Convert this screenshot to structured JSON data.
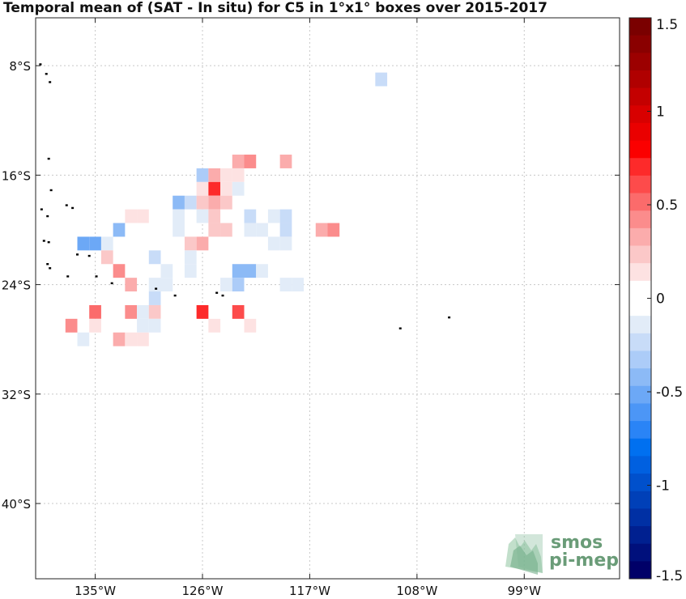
{
  "title": "Temporal mean of (SAT - In situ) for C5 in 1°x1° boxes over 2015-2017",
  "map": {
    "lon_range": [
      -140,
      -91
    ],
    "lat_range": [
      -45.5,
      -4.5
    ],
    "lon_ticks": [
      {
        "value": -135,
        "label": "135°W"
      },
      {
        "value": -126,
        "label": "126°W"
      },
      {
        "value": -117,
        "label": "117°W"
      },
      {
        "value": -108,
        "label": "108°W"
      },
      {
        "value": -99,
        "label": "99°W"
      }
    ],
    "lat_ticks": [
      {
        "value": -8,
        "label": "8°S"
      },
      {
        "value": -16,
        "label": "16°S"
      },
      {
        "value": -24,
        "label": "24°S"
      },
      {
        "value": -32,
        "label": "32°S"
      },
      {
        "value": -40,
        "label": "40°S"
      }
    ],
    "grid": true,
    "islands": [
      [
        -139.6,
        -7.9
      ],
      [
        -139.1,
        -8.6
      ],
      [
        -138.8,
        -9.2
      ],
      [
        -138.9,
        -14.8
      ],
      [
        -138.7,
        -17.1
      ],
      [
        -137.4,
        -18.2
      ],
      [
        -136.9,
        -18.4
      ],
      [
        -139.5,
        -18.5
      ],
      [
        -139.0,
        -19.0
      ],
      [
        -139.3,
        -20.8
      ],
      [
        -138.9,
        -20.9
      ],
      [
        -136.5,
        -21.8
      ],
      [
        -135.5,
        -21.9
      ],
      [
        -139.0,
        -22.5
      ],
      [
        -138.8,
        -22.8
      ],
      [
        -137.3,
        -23.4
      ],
      [
        -134.9,
        -23.4
      ],
      [
        -133.6,
        -23.9
      ],
      [
        -129.9,
        -24.3
      ],
      [
        -128.3,
        -24.8
      ],
      [
        -124.8,
        -24.6
      ],
      [
        -124.3,
        -24.8
      ],
      [
        -109.4,
        -27.2
      ],
      [
        -105.3,
        -26.4
      ]
    ]
  },
  "colorbar": {
    "min": -1.5,
    "max": 1.5,
    "tick_values": [
      1.5,
      1,
      0.5,
      0,
      -0.5,
      -1,
      -1.5
    ],
    "tick_labels": [
      "1.5",
      "1",
      "0.5",
      "0",
      "-0.5",
      "-1",
      "-1.5"
    ],
    "colors": [
      "#7a0000",
      "#8a0000",
      "#9c0000",
      "#b00000",
      "#c40000",
      "#d80000",
      "#ea0000",
      "#fb0000",
      "#fd2a2a",
      "#fd4b4b",
      "#fb6b6b",
      "#fb8c8c",
      "#fbacac",
      "#fbc8c8",
      "#fde2e2",
      "#ffffff",
      "#ffffff",
      "#e2ecf8",
      "#c8dcf8",
      "#acccf8",
      "#8cbaf6",
      "#6ca8f6",
      "#4c96f6",
      "#2a84f6",
      "#0070f0",
      "#0060e0",
      "#0050cc",
      "#0040b8",
      "#0030a4",
      "#002090",
      "#00107c",
      "#000068"
    ]
  },
  "chart_data": {
    "type": "heatmap",
    "title": "Temporal mean of (SAT - In situ) for C5 in 1°x1° boxes over 2015-2017",
    "xlabel": "",
    "ylabel": "",
    "xlim": [
      -140,
      -91
    ],
    "ylim": [
      -45.5,
      -4.5
    ],
    "color_range": [
      -1.5,
      1.5
    ],
    "cells": [
      {
        "lon": -111,
        "lat": -9,
        "v": -0.2
      },
      {
        "lon": -123,
        "lat": -15,
        "v": 0.3
      },
      {
        "lon": -122,
        "lat": -15,
        "v": 0.45
      },
      {
        "lon": -119,
        "lat": -15,
        "v": 0.3
      },
      {
        "lon": -126,
        "lat": -16,
        "v": -0.35
      },
      {
        "lon": -125,
        "lat": -16,
        "v": 0.35
      },
      {
        "lon": -124,
        "lat": -16,
        "v": 0.15
      },
      {
        "lon": -123,
        "lat": -16,
        "v": 0.15
      },
      {
        "lon": -126,
        "lat": -17,
        "v": 0.15
      },
      {
        "lon": -125,
        "lat": -17,
        "v": 0.7
      },
      {
        "lon": -124,
        "lat": -17,
        "v": 0.15
      },
      {
        "lon": -123,
        "lat": -17,
        "v": -0.1
      },
      {
        "lon": -128,
        "lat": -18,
        "v": -0.45
      },
      {
        "lon": -127,
        "lat": -18,
        "v": -0.25
      },
      {
        "lon": -126,
        "lat": -18,
        "v": 0.2
      },
      {
        "lon": -125,
        "lat": -18,
        "v": 0.3
      },
      {
        "lon": -124,
        "lat": -18,
        "v": 0.2
      },
      {
        "lon": -132,
        "lat": -19,
        "v": 0.15
      },
      {
        "lon": -131,
        "lat": -19,
        "v": 0.15
      },
      {
        "lon": -128,
        "lat": -19,
        "v": -0.1
      },
      {
        "lon": -126,
        "lat": -19,
        "v": -0.1
      },
      {
        "lon": -125,
        "lat": -19,
        "v": 0.2
      },
      {
        "lon": -122,
        "lat": -19,
        "v": -0.2
      },
      {
        "lon": -120,
        "lat": -19,
        "v": -0.1
      },
      {
        "lon": -119,
        "lat": -19,
        "v": -0.2
      },
      {
        "lon": -133,
        "lat": -20,
        "v": -0.45
      },
      {
        "lon": -128,
        "lat": -20,
        "v": -0.1
      },
      {
        "lon": -125,
        "lat": -20,
        "v": 0.2
      },
      {
        "lon": -124,
        "lat": -20,
        "v": 0.2
      },
      {
        "lon": -122,
        "lat": -20,
        "v": -0.1
      },
      {
        "lon": -121,
        "lat": -20,
        "v": -0.1
      },
      {
        "lon": -119,
        "lat": -20,
        "v": -0.2
      },
      {
        "lon": -116,
        "lat": -20,
        "v": 0.35
      },
      {
        "lon": -115,
        "lat": -20,
        "v": 0.45
      },
      {
        "lon": -136,
        "lat": -21,
        "v": -0.5
      },
      {
        "lon": -135,
        "lat": -21,
        "v": -0.5
      },
      {
        "lon": -134,
        "lat": -21,
        "v": -0.1
      },
      {
        "lon": -127,
        "lat": -21,
        "v": 0.25
      },
      {
        "lon": -126,
        "lat": -21,
        "v": 0.3
      },
      {
        "lon": -120,
        "lat": -21,
        "v": -0.1
      },
      {
        "lon": -119,
        "lat": -21,
        "v": -0.1
      },
      {
        "lon": -134,
        "lat": -22,
        "v": 0.25
      },
      {
        "lon": -130,
        "lat": -22,
        "v": -0.25
      },
      {
        "lon": -127,
        "lat": -22,
        "v": -0.1
      },
      {
        "lon": -133,
        "lat": -23,
        "v": 0.4
      },
      {
        "lon": -129,
        "lat": -23,
        "v": -0.15
      },
      {
        "lon": -127,
        "lat": -23,
        "v": -0.1
      },
      {
        "lon": -123,
        "lat": -23,
        "v": -0.4
      },
      {
        "lon": -122,
        "lat": -23,
        "v": -0.45
      },
      {
        "lon": -121,
        "lat": -23,
        "v": -0.1
      },
      {
        "lon": -132,
        "lat": -24,
        "v": 0.35
      },
      {
        "lon": -130,
        "lat": -24,
        "v": -0.1
      },
      {
        "lon": -129,
        "lat": -24,
        "v": -0.1
      },
      {
        "lon": -124,
        "lat": -24,
        "v": -0.1
      },
      {
        "lon": -123,
        "lat": -24,
        "v": -0.3
      },
      {
        "lon": -119,
        "lat": -24,
        "v": -0.15
      },
      {
        "lon": -118,
        "lat": -24,
        "v": -0.15
      },
      {
        "lon": -130,
        "lat": -25,
        "v": -0.2
      },
      {
        "lon": -135,
        "lat": -26,
        "v": 0.55
      },
      {
        "lon": -132,
        "lat": -26,
        "v": 0.45
      },
      {
        "lon": -131,
        "lat": -26,
        "v": -0.15
      },
      {
        "lon": -130,
        "lat": -26,
        "v": 0.25
      },
      {
        "lon": -126,
        "lat": -26,
        "v": 0.7
      },
      {
        "lon": -123,
        "lat": -26,
        "v": 0.6
      },
      {
        "lon": -137,
        "lat": -27,
        "v": 0.45
      },
      {
        "lon": -135,
        "lat": -27,
        "v": 0.15
      },
      {
        "lon": -131,
        "lat": -27,
        "v": -0.15
      },
      {
        "lon": -130,
        "lat": -27,
        "v": -0.15
      },
      {
        "lon": -125,
        "lat": -27,
        "v": 0.15
      },
      {
        "lon": -122,
        "lat": -27,
        "v": 0.15
      },
      {
        "lon": -136,
        "lat": -28,
        "v": -0.15
      },
      {
        "lon": -133,
        "lat": -28,
        "v": 0.35
      },
      {
        "lon": -132,
        "lat": -28,
        "v": 0.15
      },
      {
        "lon": -131,
        "lat": -28,
        "v": 0.15
      }
    ]
  },
  "logo": {
    "line1": "smos",
    "line2": "pi-mep"
  }
}
